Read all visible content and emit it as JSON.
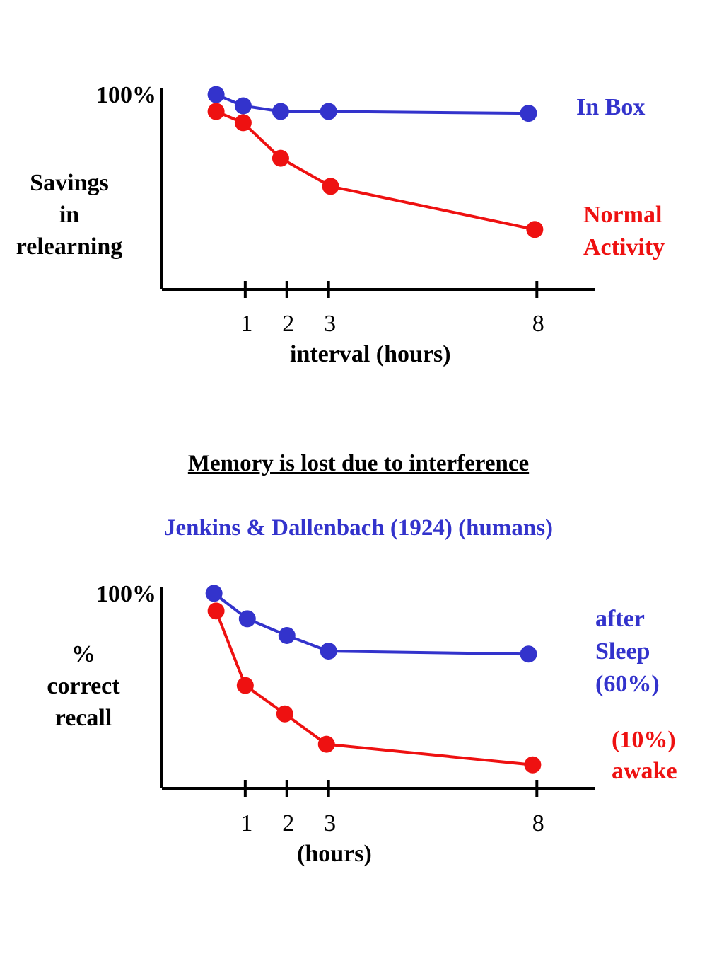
{
  "colors": {
    "blue": "#3333cc",
    "red": "#ee1111",
    "axis": "#000000"
  },
  "headings": {
    "underlined": "Memory is lost due to interference",
    "citation": "Jenkins & Dallenbach (1924) (humans)"
  },
  "chart_data": [
    {
      "type": "line",
      "title": "",
      "ylabel_lines": [
        "Savings",
        "in",
        "relearning"
      ],
      "xlabel": "interval (hours)",
      "ytick_label": "100%",
      "xticks": [
        1,
        2,
        3,
        8
      ],
      "xtick_labels": [
        "1",
        "2",
        "3",
        "8"
      ],
      "xlim": [
        -1,
        9.2
      ],
      "ylim": [
        0,
        105
      ],
      "series": [
        {
          "name_lines": [
            "In Box"
          ],
          "color": "#3333cc",
          "x": [
            0.3,
            0.95,
            1.85,
            3.0,
            7.8
          ],
          "y": [
            104,
            98,
            95,
            95,
            94
          ]
        },
        {
          "name_lines": [
            "Normal",
            "Activity"
          ],
          "color": "#ee1111",
          "x": [
            0.3,
            0.95,
            1.85,
            3.05,
            7.95
          ],
          "y": [
            95,
            89,
            70,
            55,
            32
          ]
        }
      ]
    },
    {
      "type": "line",
      "title": "",
      "ylabel_lines": [
        "%",
        "correct",
        "recall"
      ],
      "xlabel": "(hours)",
      "ytick_label": "100%",
      "xticks": [
        1,
        2,
        3,
        8
      ],
      "xtick_labels": [
        "1",
        "2",
        "3",
        "8"
      ],
      "xlim": [
        -1,
        9.2
      ],
      "ylim": [
        0,
        100
      ],
      "series": [
        {
          "name_lines": [
            "after",
            "Sleep",
            "(60%)"
          ],
          "color": "#3333cc",
          "x": [
            0.25,
            1.05,
            2.0,
            3.0,
            7.8
          ],
          "y": [
            99.5,
            86.5,
            78,
            70,
            68.5
          ]
        },
        {
          "name_lines": [
            "(10%)",
            "awake"
          ],
          "color": "#ee1111",
          "x": [
            0.3,
            1.0,
            1.95,
            2.95,
            7.9
          ],
          "y": [
            90.5,
            52.5,
            38,
            22.5,
            12
          ]
        }
      ]
    }
  ]
}
